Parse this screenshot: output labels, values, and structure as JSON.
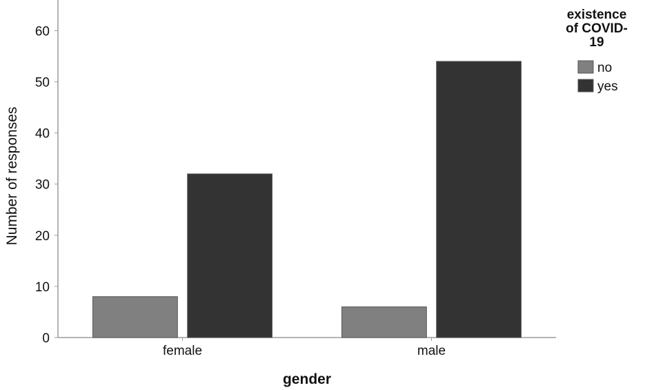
{
  "chart_data": {
    "type": "bar",
    "categories": [
      "female",
      "male"
    ],
    "series": [
      {
        "name": "no",
        "values": [
          8,
          6
        ],
        "color": "#808080"
      },
      {
        "name": "yes",
        "values": [
          32,
          54
        ],
        "color": "#333333"
      }
    ],
    "xlabel": "gender",
    "ylabel": "Number of responses",
    "ylim": [
      0,
      66
    ],
    "yticks": [
      0,
      10,
      20,
      30,
      40,
      50,
      60
    ],
    "grid": false,
    "legend": {
      "title_lines": [
        "existence",
        "of COVID-",
        "19"
      ],
      "placement": "top-right"
    },
    "bar_stroke": "#555555"
  }
}
